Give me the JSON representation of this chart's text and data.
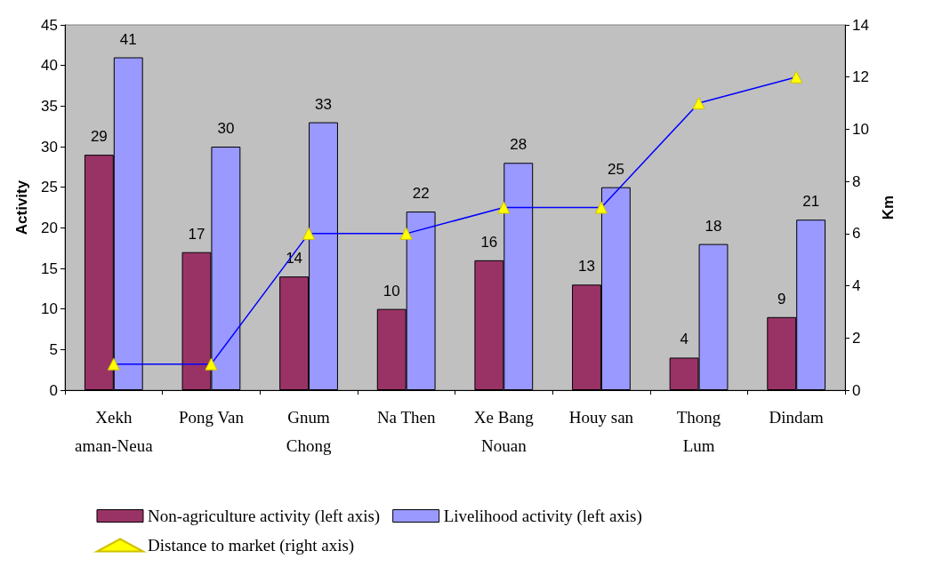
{
  "chart_data": {
    "type": "bar",
    "ylabel": "Activity",
    "y2label": "Km",
    "categories": [
      "Xekh\naman-Neua",
      "Pong Van",
      "Gnum\nChong",
      "Na Then",
      "Xe Bang\nNouan",
      "Houy san",
      "Thong\nLum",
      "Dindam"
    ],
    "series": [
      {
        "name": "Non-agriculture activity (left axis)",
        "color": "#993366",
        "values": [
          29,
          17,
          14,
          10,
          16,
          13,
          4,
          9
        ],
        "value_labels": [
          "29",
          "17",
          "14",
          "10",
          "16",
          "13",
          "4",
          "9"
        ]
      },
      {
        "name": "Livelihood activity (left axis)",
        "color": "#9999ff",
        "values": [
          41,
          30,
          33,
          22,
          28,
          25,
          18,
          21
        ],
        "value_labels": [
          "41",
          "30",
          "33",
          "22",
          "28",
          "25",
          "18",
          "21"
        ]
      },
      {
        "name": "Distance to market (right axis)",
        "type": "line",
        "axis": "y2",
        "color": "#0000ff",
        "marker": "triangle",
        "values": [
          1,
          1,
          6,
          6,
          7,
          7,
          11,
          12
        ]
      }
    ],
    "ylim": [
      0,
      45
    ],
    "yticks": [
      0,
      5,
      10,
      15,
      20,
      25,
      30,
      35,
      40,
      45
    ],
    "y2lim": [
      0,
      14
    ],
    "y2ticks": [
      0,
      2,
      4,
      6,
      8,
      10,
      12,
      14
    ],
    "grid": false,
    "legend": "bottom"
  }
}
